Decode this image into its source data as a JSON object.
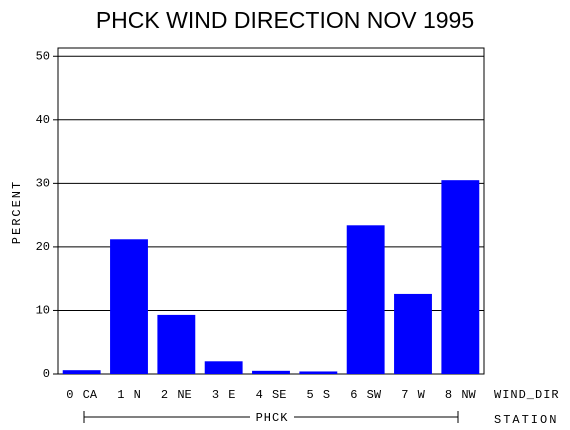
{
  "chart_data": {
    "type": "bar",
    "title": "PHCK WIND DIRECTION NOV 1995",
    "y_label": "PERCENT",
    "x_label": "WIND_DIR",
    "group_label": "STATION",
    "group": "PHCK",
    "categories": [
      "0 CA",
      "1 N",
      "2 NE",
      "3 E",
      "4 SE",
      "5 S",
      "6 SW",
      "7 W",
      "8 NW"
    ],
    "values": [
      0.6,
      21.2,
      9.3,
      2.0,
      0.5,
      0.4,
      23.4,
      12.6,
      30.5
    ],
    "color": "#0000ff",
    "ylim": [
      0,
      51.3
    ],
    "yticks": [
      0,
      10,
      20,
      30,
      40,
      50
    ],
    "grid": true
  }
}
